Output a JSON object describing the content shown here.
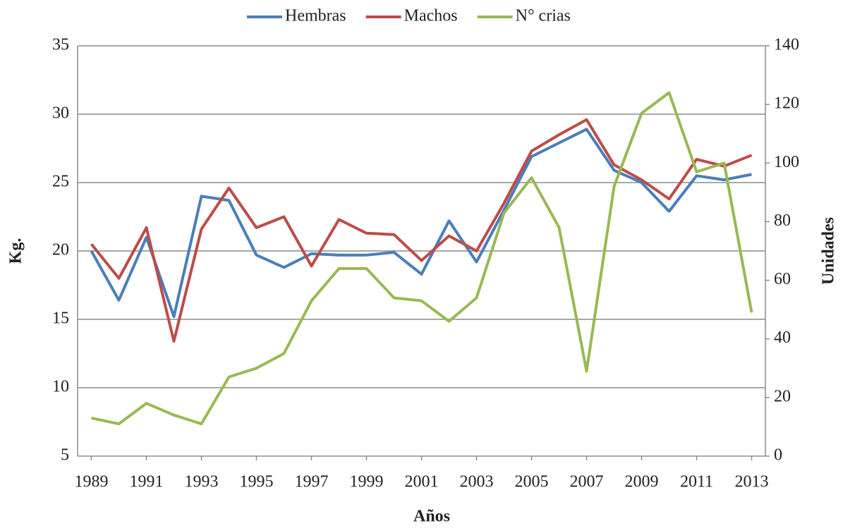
{
  "chart_data": {
    "type": "line",
    "x_label": "Años",
    "y_label": "Kg.",
    "y2_label": "Unidades",
    "x": [
      1989,
      1990,
      1991,
      1992,
      1993,
      1994,
      1995,
      1996,
      1997,
      1998,
      1999,
      2000,
      2001,
      2002,
      2003,
      2004,
      2005,
      2006,
      2007,
      2008,
      2009,
      2010,
      2011,
      2012,
      2013
    ],
    "xlim": [
      1988.5,
      2013.5
    ],
    "xticks": [
      1989,
      1991,
      1993,
      1995,
      1997,
      1999,
      2001,
      2003,
      2005,
      2007,
      2009,
      2011,
      2013
    ],
    "ylim": [
      5,
      35
    ],
    "yticks": [
      5,
      10,
      15,
      20,
      25,
      30,
      35
    ],
    "y2lim": [
      0,
      140
    ],
    "y2ticks": [
      0,
      20,
      40,
      60,
      80,
      100,
      120,
      140
    ],
    "grid": true,
    "legend": "top",
    "series": [
      {
        "name": "Hembras",
        "color": "#4a7ebb",
        "values": [
          20.0,
          16.4,
          21.0,
          15.2,
          24.0,
          23.7,
          19.7,
          18.8,
          19.8,
          19.7,
          19.7,
          19.9,
          18.3,
          22.2,
          19.2,
          23.0,
          26.9,
          27.9,
          28.9,
          25.9,
          25.0,
          22.9,
          25.5,
          25.2,
          25.6
        ]
      },
      {
        "name": "Machos",
        "color": "#be4b48",
        "values": [
          20.5,
          18.0,
          21.7,
          13.4,
          21.6,
          24.6,
          21.7,
          22.5,
          18.9,
          22.3,
          21.3,
          21.2,
          19.3,
          21.1,
          20.0,
          23.5,
          27.3,
          28.5,
          29.6,
          26.3,
          25.2,
          23.8,
          26.7,
          26.2,
          27.0
        ]
      },
      {
        "name": "N° crias",
        "color": "#98b954",
        "axis": "y2",
        "values": [
          13,
          11,
          18,
          14,
          11,
          27,
          30,
          35,
          53,
          64,
          64,
          54,
          53,
          46,
          54,
          83,
          95,
          78,
          29,
          92,
          117,
          124,
          97,
          100,
          49
        ]
      }
    ]
  }
}
